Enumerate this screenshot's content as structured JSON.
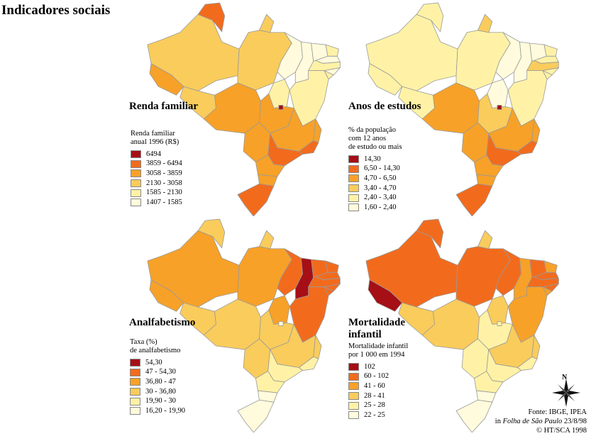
{
  "title": "Indicadores sociais",
  "colors": {
    "c1": "#a50f15",
    "c2": "#f26b1d",
    "c3": "#f7a128",
    "c4": "#f9cc5c",
    "c5": "#fff2a6",
    "c6": "#fffbdc",
    "border": "#9a9a9a"
  },
  "panels": [
    {
      "id": "renda",
      "title": "Renda familiar",
      "legend_title": "Renda familiar\nanual 1996 (R$)",
      "classes": [
        "6494",
        "3859 - 6494",
        "3058 - 3859",
        "2130 - 3058",
        "1585 - 2130",
        "1407 - 1585"
      ],
      "class_colors": [
        "#a50f15",
        "#f26b1d",
        "#f7a128",
        "#f9cc5c",
        "#fff2a6",
        "#fffbdc"
      ]
    },
    {
      "id": "anos",
      "title": "Anos de estudos",
      "legend_title": "% da população\ncom 12 anos\nde estudo ou mais",
      "classes": [
        "14,30",
        "6,50 - 14,30",
        "4,70 - 6,50",
        "3,40 - 4,70",
        "2,40 - 3,40",
        "1,60 - 2,40"
      ],
      "class_colors": [
        "#a50f15",
        "#f26b1d",
        "#f7a128",
        "#f9cc5c",
        "#fff2a6",
        "#fffbdc"
      ]
    },
    {
      "id": "analf",
      "title": "Analfabetismo",
      "legend_title": "Taxa (%)\nde analfabetismo",
      "classes": [
        "54,30",
        "47 - 54,30",
        "36,80 - 47",
        "30 - 36,80",
        "19,90 - 30",
        "16,20 - 19,90"
      ],
      "class_colors": [
        "#a50f15",
        "#f26b1d",
        "#f7a128",
        "#f9cc5c",
        "#fff2a6",
        "#fffbdc"
      ]
    },
    {
      "id": "mort",
      "title": "Mortalidade\ninfantil",
      "legend_title": "Mortalidade infantil\npor 1 000 em 1994",
      "classes": [
        "102",
        "60 - 102",
        "41 - 60",
        "28 - 41",
        "25 - 28",
        "22 - 25"
      ],
      "class_colors": [
        "#a50f15",
        "#f26b1d",
        "#f7a128",
        "#f9cc5c",
        "#fff2a6",
        "#fffbdc"
      ]
    }
  ],
  "compass_label": "N",
  "source": {
    "line1": "Fonte: IBGE, IPEA",
    "line2_prefix": "in ",
    "line2_italic": "Folha de São Paulo",
    "line2_suffix": " 23/8/98",
    "line3": "© HT/SCA 1998"
  }
}
